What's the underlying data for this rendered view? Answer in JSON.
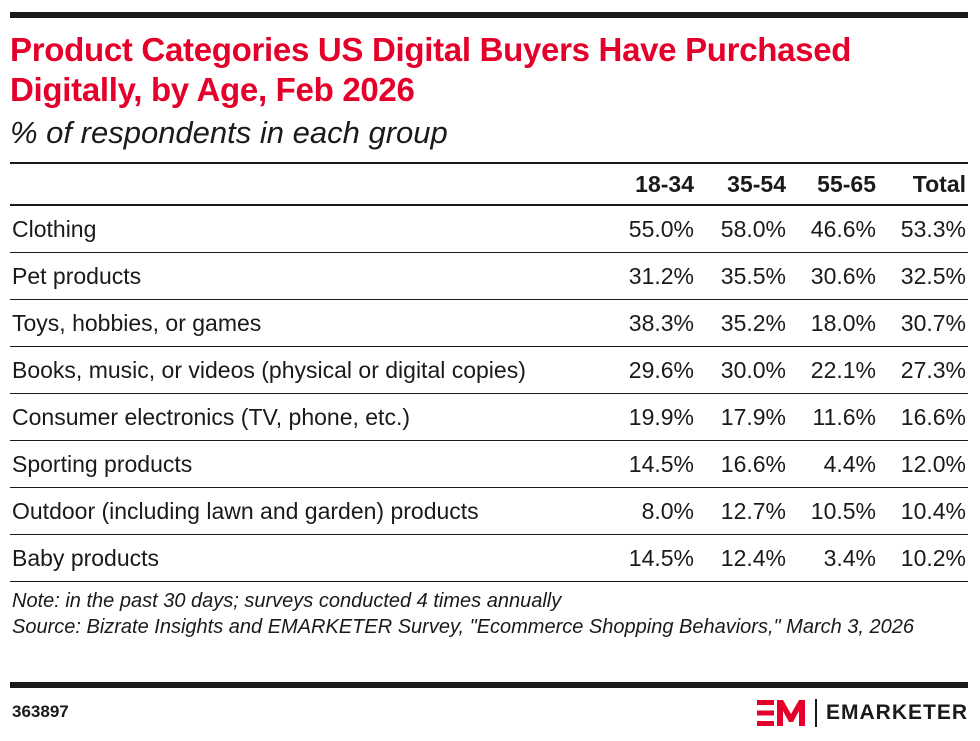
{
  "header": {
    "title": "Product Categories US Digital Buyers Have Purchased Digitally, by Age, Feb 2026",
    "subtitle": "% of respondents in each group"
  },
  "chart_data": {
    "type": "table",
    "title": "Product Categories US Digital Buyers Have Purchased Digitally, by Age, Feb 2026",
    "subtitle": "% of respondents in each group",
    "columns": [
      "18-34",
      "35-54",
      "55-65",
      "Total"
    ],
    "rows": [
      {
        "category": "Clothing",
        "values": [
          "55.0%",
          "58.0%",
          "46.6%",
          "53.3%"
        ]
      },
      {
        "category": "Pet products",
        "values": [
          "31.2%",
          "35.5%",
          "30.6%",
          "32.5%"
        ]
      },
      {
        "category": "Toys, hobbies, or games",
        "values": [
          "38.3%",
          "35.2%",
          "18.0%",
          "30.7%"
        ]
      },
      {
        "category": "Books, music, or videos (physical or digital copies)",
        "values": [
          "29.6%",
          "30.0%",
          "22.1%",
          "27.3%"
        ]
      },
      {
        "category": "Consumer electronics (TV, phone, etc.)",
        "values": [
          "19.9%",
          "17.9%",
          "11.6%",
          "16.6%"
        ]
      },
      {
        "category": "Sporting products",
        "values": [
          "14.5%",
          "16.6%",
          "4.4%",
          "12.0%"
        ]
      },
      {
        "category": "Outdoor (including lawn and garden) products",
        "values": [
          "8.0%",
          "12.7%",
          "10.5%",
          "10.4%"
        ]
      },
      {
        "category": "Baby products",
        "values": [
          "14.5%",
          "12.4%",
          "3.4%",
          "10.2%"
        ]
      }
    ]
  },
  "footer": {
    "note": "Note: in the past 30 days; surveys conducted 4 times annually",
    "source": "Source: Bizrate Insights and EMARKETER Survey, \"Ecommerce Shopping Behaviors,\" March 3, 2026",
    "chart_id": "363897",
    "brand": "EMARKETER"
  },
  "colors": {
    "accent": "#e4002b",
    "text": "#1a1a1a",
    "background": "#ffffff"
  },
  "icons": {
    "logo": "emarketer-logo-mark"
  }
}
